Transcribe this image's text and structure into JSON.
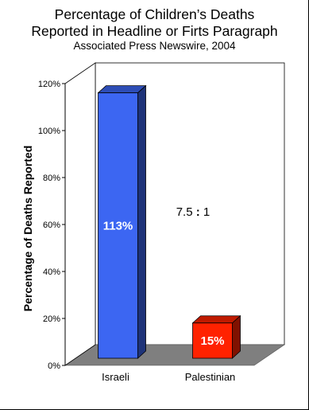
{
  "chart_data": {
    "type": "bar",
    "title": [
      "Percentage of Children’s Deaths",
      "Reported in Headline or Firts Paragraph"
    ],
    "subtitle": "Associated Press Newswire, 2004",
    "ylabel": "Percentage of Deaths Reported",
    "xlabel": "",
    "categories": [
      "Israeli",
      "Palestinian"
    ],
    "values": [
      113,
      15
    ],
    "value_labels": [
      "113%",
      "15%"
    ],
    "yticks": [
      "0%",
      "20%",
      "40%",
      "60%",
      "80%",
      "100%",
      "120%"
    ],
    "ylim": [
      0,
      120
    ],
    "grid": false,
    "bar_colors": [
      "#3c66f2",
      "#ff2200"
    ],
    "annotation": {
      "left": "7.5",
      "sep": ":",
      "right": "1"
    },
    "style": "3d"
  }
}
